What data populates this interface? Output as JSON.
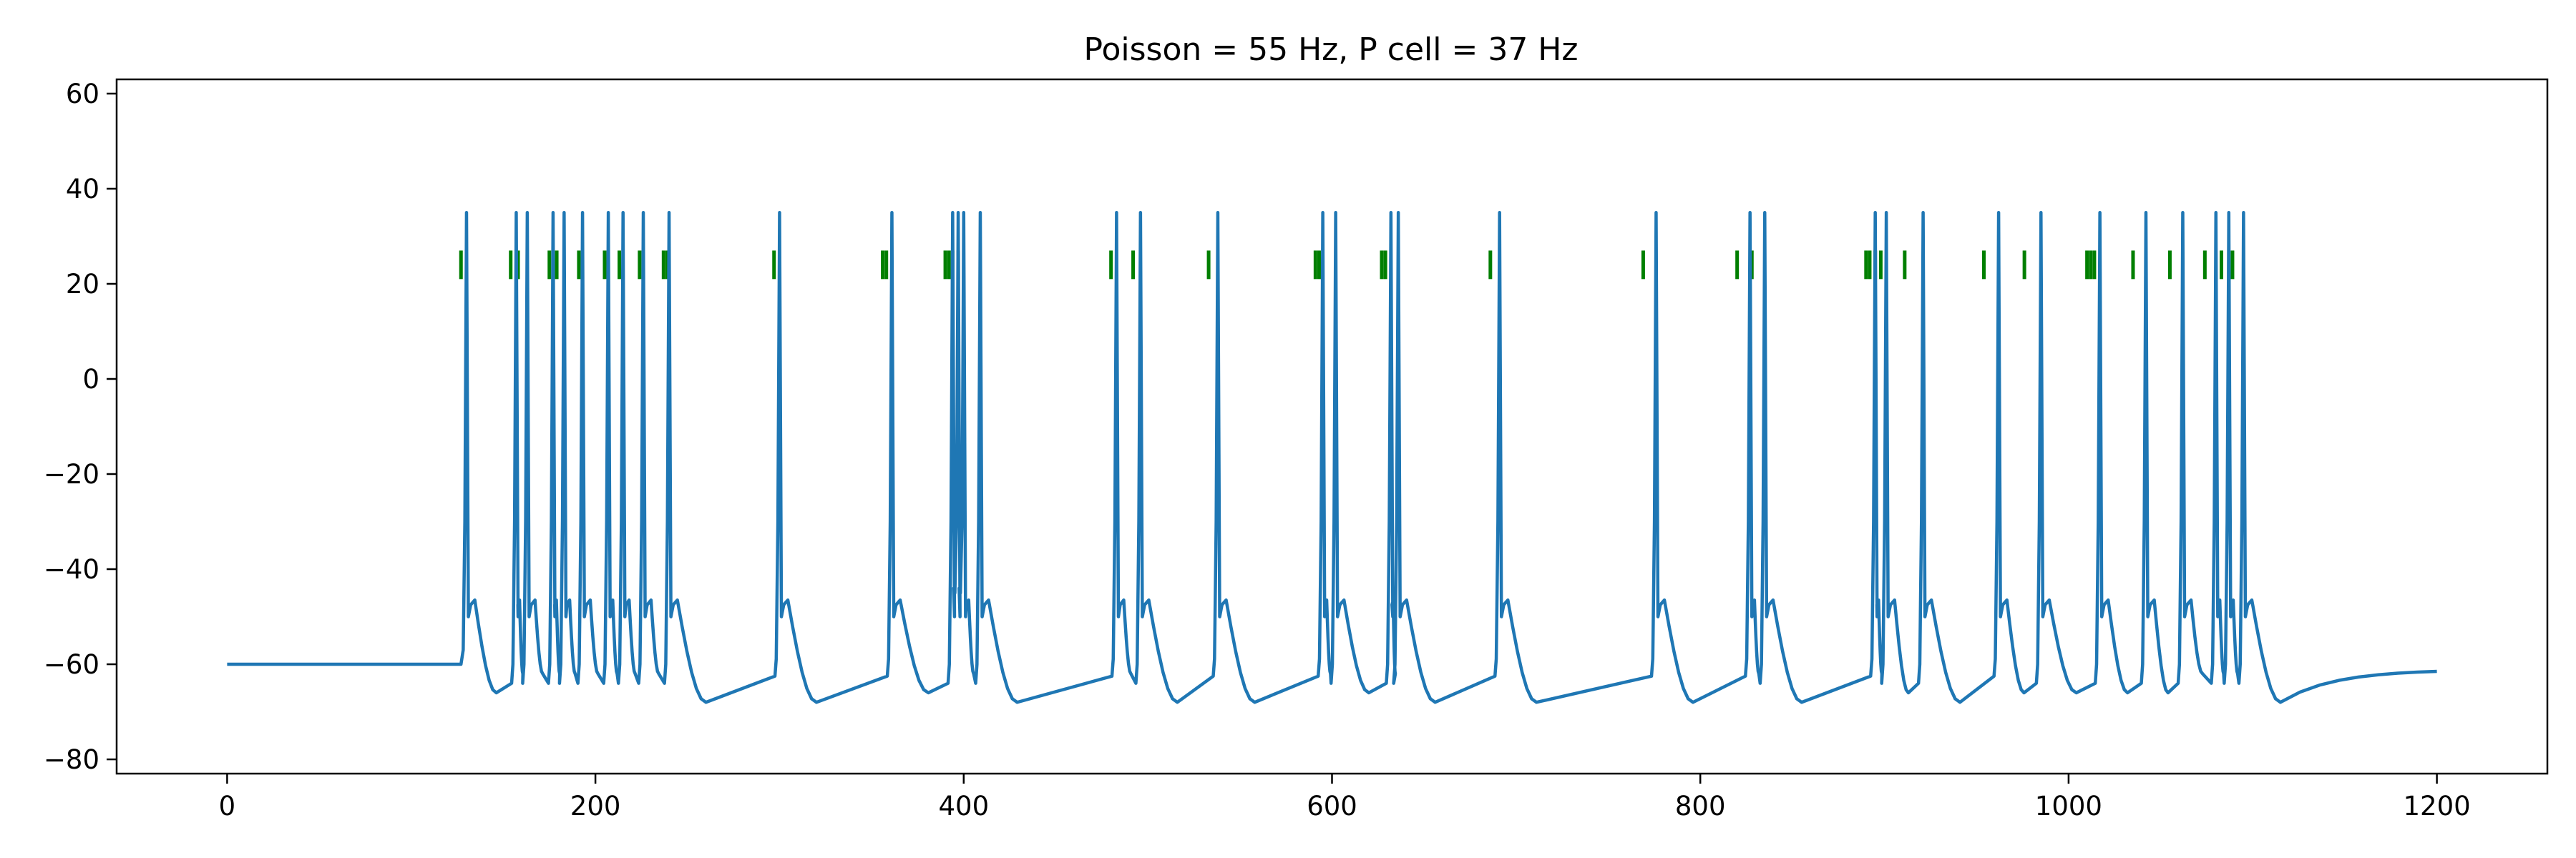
{
  "chart_data": {
    "type": "line",
    "title": "Poisson = 55 Hz, P cell = 37 Hz",
    "xlabel": "",
    "ylabel": "",
    "xlim": [
      -60,
      1260
    ],
    "ylim": [
      -83,
      63
    ],
    "x_ticks": [
      0,
      200,
      400,
      600,
      800,
      1000,
      1200
    ],
    "y_ticks": [
      -80,
      -60,
      -40,
      -20,
      0,
      20,
      40,
      60
    ],
    "x_tick_labels": [
      "0",
      "200",
      "400",
      "600",
      "800",
      "1000",
      "1200"
    ],
    "y_tick_labels": [
      "−80",
      "−60",
      "−40",
      "−20",
      "0",
      "20",
      "40",
      "60"
    ],
    "grid": false,
    "legend": "none",
    "colors": {
      "trace": "#1f77b4",
      "input_spikes": "#007f00"
    },
    "series": [
      {
        "spike_times": [
          130,
          157,
          163,
          177,
          183,
          193,
          207,
          215,
          226,
          240,
          300,
          361,
          394,
          397,
          400,
          409,
          483,
          496,
          538,
          595,
          602,
          632,
          636,
          691,
          776,
          827,
          835,
          895,
          901,
          921,
          962,
          985,
          1017,
          1042,
          1062,
          1080,
          1087,
          1095
        ],
        "rest_potential": -60,
        "spike_peak": 35,
        "end_potential": -61.5
      }
    ],
    "input_spikes": [
      127,
      154,
      158,
      175,
      179,
      191,
      205,
      213,
      224,
      237,
      239,
      297,
      356,
      358,
      390,
      392,
      394,
      397,
      480,
      492,
      533,
      591,
      593,
      627,
      629,
      686,
      769,
      820,
      828,
      890,
      892,
      895,
      898,
      911,
      954,
      976,
      1010,
      1012,
      1014,
      1035,
      1055,
      1074,
      1083,
      1089
    ],
    "input_spike_band": [
      21,
      27
    ]
  }
}
